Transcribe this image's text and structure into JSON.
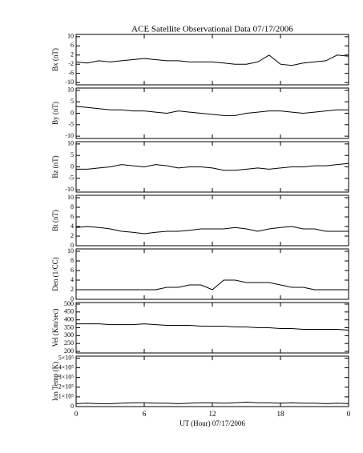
{
  "chart_data": [
    {
      "type": "line",
      "title": "ACE Satellite Observational Data   07/17/2006",
      "ylabel": "Bx (nT)",
      "x": [
        0,
        1,
        2,
        3,
        4,
        5,
        6,
        7,
        8,
        9,
        10,
        11,
        12,
        13,
        14,
        15,
        16,
        17,
        18,
        19,
        20,
        21,
        22,
        23,
        24
      ],
      "series": [
        {
          "name": "Bx",
          "color": "#000000",
          "values": [
            -1,
            -1.5,
            -0.5,
            -1,
            -0.5,
            0,
            0.5,
            0,
            -0.5,
            -0.5,
            -1,
            -1,
            -1,
            -1.5,
            -2,
            -2,
            -1,
            2,
            -2,
            -2.5,
            -1.5,
            -1,
            -0.5,
            2,
            1.5
          ]
        }
      ],
      "xlim": [
        0,
        24
      ],
      "ylim": [
        -11,
        11
      ],
      "yticks": [
        10,
        6,
        2,
        -2,
        -6,
        -10
      ]
    },
    {
      "type": "line",
      "ylabel": "By (nT)",
      "x": [
        0,
        1,
        2,
        3,
        4,
        5,
        6,
        7,
        8,
        9,
        10,
        11,
        12,
        13,
        14,
        15,
        16,
        17,
        18,
        19,
        20,
        21,
        22,
        23,
        24
      ],
      "series": [
        {
          "name": "By",
          "color": "#000000",
          "values": [
            3,
            2.5,
            2,
            1.5,
            1.5,
            1,
            1,
            0.5,
            0,
            1,
            0.5,
            0,
            -0.5,
            -1,
            -1,
            0,
            0.5,
            1,
            1,
            0.5,
            0,
            0.5,
            1,
            1.5,
            1.5
          ]
        }
      ],
      "xlim": [
        0,
        24
      ],
      "ylim": [
        -11,
        11
      ],
      "yticks": [
        10,
        5,
        0,
        -5,
        -10
      ]
    },
    {
      "type": "line",
      "ylabel": "Bz (nT)",
      "x": [
        0,
        1,
        2,
        3,
        4,
        5,
        6,
        7,
        8,
        9,
        10,
        11,
        12,
        13,
        14,
        15,
        16,
        17,
        18,
        19,
        20,
        21,
        22,
        23,
        24
      ],
      "series": [
        {
          "name": "Bz",
          "color": "#000000",
          "values": [
            -1,
            -1,
            -0.5,
            0,
            1,
            0.5,
            0,
            1,
            0.5,
            -0.5,
            0,
            0,
            -0.5,
            -1.5,
            -1.5,
            -1,
            -0.5,
            -1,
            -0.5,
            0,
            0,
            0.5,
            0.5,
            1,
            1.5
          ]
        }
      ],
      "xlim": [
        0,
        24
      ],
      "ylim": [
        -11,
        11
      ],
      "yticks": [
        10,
        5,
        0,
        -5,
        -10
      ]
    },
    {
      "type": "line",
      "ylabel": "Bt (nT)",
      "x": [
        0,
        1,
        2,
        3,
        4,
        5,
        6,
        7,
        8,
        9,
        10,
        11,
        12,
        13,
        14,
        15,
        16,
        17,
        18,
        19,
        20,
        21,
        22,
        23,
        24
      ],
      "series": [
        {
          "name": "Bt",
          "color": "#000000",
          "values": [
            3.8,
            4,
            3.8,
            3.5,
            3,
            2.8,
            2.5,
            2.8,
            3,
            3,
            3.2,
            3.5,
            3.5,
            3.5,
            3.8,
            3.5,
            3,
            3.5,
            3.8,
            4,
            3.5,
            3.5,
            3,
            3,
            3
          ]
        }
      ],
      "xlim": [
        0,
        24
      ],
      "ylim": [
        0,
        10.5
      ],
      "yticks": [
        10,
        8,
        6,
        4,
        2,
        0
      ]
    },
    {
      "type": "line",
      "ylabel": "Den (1/CC)",
      "x": [
        0,
        1,
        2,
        3,
        4,
        5,
        6,
        7,
        8,
        9,
        10,
        11,
        12,
        13,
        14,
        15,
        16,
        17,
        18,
        19,
        20,
        21,
        22,
        23,
        24
      ],
      "series": [
        {
          "name": "Den",
          "color": "#000000",
          "values": [
            2,
            2,
            2,
            2,
            2,
            2,
            2,
            2,
            2.5,
            2.5,
            3,
            3,
            2,
            4,
            4,
            3.5,
            3.5,
            3.5,
            3,
            2.5,
            2.5,
            2,
            2,
            2,
            2
          ]
        }
      ],
      "xlim": [
        0,
        24
      ],
      "ylim": [
        0,
        10.5
      ],
      "yticks": [
        10,
        8,
        6,
        4,
        2,
        0
      ]
    },
    {
      "type": "line",
      "ylabel": "Vel (Km/sec)",
      "x": [
        0,
        1,
        2,
        3,
        4,
        5,
        6,
        7,
        8,
        9,
        10,
        11,
        12,
        13,
        14,
        15,
        16,
        17,
        18,
        19,
        20,
        21,
        22,
        23,
        24
      ],
      "series": [
        {
          "name": "Vel",
          "color": "#000000",
          "values": [
            375,
            375,
            375,
            370,
            370,
            370,
            375,
            370,
            365,
            365,
            365,
            360,
            360,
            360,
            355,
            355,
            350,
            350,
            345,
            345,
            340,
            340,
            340,
            340,
            335
          ]
        }
      ],
      "xlim": [
        0,
        24
      ],
      "ylim": [
        190,
        510
      ],
      "yticks": [
        500,
        450,
        400,
        350,
        300,
        250,
        200
      ]
    },
    {
      "type": "line",
      "ylabel": "Ion Temp (K)",
      "xlabel": "UT (Hour)   07/17/2006",
      "x": [
        0,
        1,
        2,
        3,
        4,
        5,
        6,
        7,
        8,
        9,
        10,
        11,
        12,
        13,
        14,
        15,
        16,
        17,
        18,
        19,
        20,
        21,
        22,
        23,
        24
      ],
      "series": [
        {
          "name": "Temp",
          "color": "#000000",
          "values": [
            30000,
            35000,
            30000,
            30000,
            35000,
            40000,
            40000,
            35000,
            35000,
            30000,
            35000,
            40000,
            40000,
            35000,
            40000,
            45000,
            40000,
            40000,
            35000,
            40000,
            35000,
            35000,
            30000,
            35000,
            30000
          ]
        }
      ],
      "xlim": [
        0,
        24
      ],
      "ylim": [
        0,
        520000
      ],
      "yticks": [
        {
          "value": 500000,
          "label": "5×10⁵"
        },
        {
          "value": 400000,
          "label": "4×10⁵"
        },
        {
          "value": 300000,
          "label": "3×10⁵"
        },
        {
          "value": 200000,
          "label": "2×10⁵"
        },
        {
          "value": 100000,
          "label": "1×10⁵"
        },
        0
      ],
      "xticks": [
        0,
        6,
        12,
        18,
        {
          "value": 24,
          "label": "0"
        }
      ]
    }
  ]
}
